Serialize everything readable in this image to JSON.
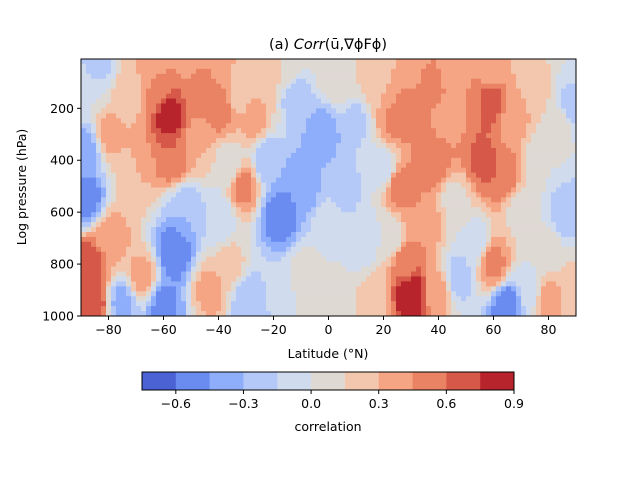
{
  "chart_data": {
    "type": "heatmap",
    "title": "(a) Corr(ū,∇ϕFϕ)",
    "title_plain": "(a) ",
    "title_italic": "Corr",
    "title_rest": "(ū,∇ϕFϕ)",
    "xlabel": "Latitude (°N)",
    "ylabel": "Log pressure (hPa)",
    "xlim": [
      -90,
      90
    ],
    "ylim": [
      1000,
      10
    ],
    "xticks": [
      "−80",
      "−60",
      "−40",
      "−20",
      "0",
      "20",
      "40",
      "60",
      "80"
    ],
    "xtick_values": [
      -80,
      -60,
      -40,
      -20,
      0,
      20,
      40,
      60,
      80
    ],
    "yticks": [
      "200",
      "400",
      "600",
      "800",
      "1000"
    ],
    "ytick_values": [
      200,
      400,
      600,
      800,
      1000
    ],
    "colorbar": {
      "label": "correlation",
      "levels": [
        -0.75,
        -0.6,
        -0.45,
        -0.3,
        -0.15,
        0.0,
        0.15,
        0.3,
        0.45,
        0.6,
        0.75,
        0.9
      ],
      "colors": [
        "#4a62d4",
        "#6a8cf0",
        "#8eaefb",
        "#b4c9f7",
        "#d1dbee",
        "#dfd9d4",
        "#f3c6ae",
        "#f5a584",
        "#ea8363",
        "#d65848",
        "#b8242c"
      ],
      "tick_labels": [
        "−0.6",
        "−0.3",
        "0.0",
        "0.3",
        "0.6",
        "0.9"
      ],
      "tick_values": [
        -0.6,
        -0.3,
        0.0,
        0.3,
        0.6,
        0.9
      ]
    },
    "grid": false,
    "colormap": "coolwarm",
    "field_anchors": [
      {
        "lat": -88,
        "p": 150,
        "r": 0.0
      },
      {
        "lat": -88,
        "p": 350,
        "r": -0.35
      },
      {
        "lat": -88,
        "p": 550,
        "r": -0.55
      },
      {
        "lat": -87,
        "p": 800,
        "r": 0.7
      },
      {
        "lat": -86,
        "p": 950,
        "r": 0.75
      },
      {
        "lat": -80,
        "p": 300,
        "r": 0.35
      },
      {
        "lat": -80,
        "p": 700,
        "r": 0.4
      },
      {
        "lat": -75,
        "p": 950,
        "r": -0.35
      },
      {
        "lat": -72,
        "p": 150,
        "r": 0.25
      },
      {
        "lat": -70,
        "p": 450,
        "r": 0.3
      },
      {
        "lat": -68,
        "p": 850,
        "r": 0.35
      },
      {
        "lat": -62,
        "p": 130,
        "r": 0.5
      },
      {
        "lat": -58,
        "p": 220,
        "r": 0.85
      },
      {
        "lat": -57,
        "p": 380,
        "r": 0.6
      },
      {
        "lat": -56,
        "p": 750,
        "r": -0.6
      },
      {
        "lat": -60,
        "p": 960,
        "r": -0.5
      },
      {
        "lat": -52,
        "p": 600,
        "r": -0.3
      },
      {
        "lat": -48,
        "p": 120,
        "r": 0.55
      },
      {
        "lat": -46,
        "p": 330,
        "r": 0.3
      },
      {
        "lat": -43,
        "p": 900,
        "r": 0.35
      },
      {
        "lat": -40,
        "p": 200,
        "r": 0.6
      },
      {
        "lat": -40,
        "p": 620,
        "r": -0.15
      },
      {
        "lat": -36,
        "p": 420,
        "r": 0.0
      },
      {
        "lat": -36,
        "p": 800,
        "r": 0.2
      },
      {
        "lat": -33,
        "p": 150,
        "r": 0.25
      },
      {
        "lat": -31,
        "p": 500,
        "r": 0.5
      },
      {
        "lat": -29,
        "p": 950,
        "r": -0.3
      },
      {
        "lat": -27,
        "p": 250,
        "r": 0.35
      },
      {
        "lat": -23,
        "p": 80,
        "r": 0.3
      },
      {
        "lat": -22,
        "p": 400,
        "r": -0.3
      },
      {
        "lat": -18,
        "p": 620,
        "r": -0.55
      },
      {
        "lat": -18,
        "p": 900,
        "r": -0.1
      },
      {
        "lat": -12,
        "p": 150,
        "r": -0.25
      },
      {
        "lat": -10,
        "p": 500,
        "r": -0.45
      },
      {
        "lat": -8,
        "p": 850,
        "r": 0.15
      },
      {
        "lat": -2,
        "p": 300,
        "r": -0.4
      },
      {
        "lat": 0,
        "p": 650,
        "r": -0.1
      },
      {
        "lat": 2,
        "p": 920,
        "r": 0.05
      },
      {
        "lat": 5,
        "p": 90,
        "r": 0.1
      },
      {
        "lat": 6,
        "p": 500,
        "r": -0.2
      },
      {
        "lat": 10,
        "p": 250,
        "r": -0.2
      },
      {
        "lat": 12,
        "p": 700,
        "r": -0.15
      },
      {
        "lat": 16,
        "p": 950,
        "r": 0.2
      },
      {
        "lat": 18,
        "p": 130,
        "r": 0.3
      },
      {
        "lat": 20,
        "p": 430,
        "r": -0.1
      },
      {
        "lat": 22,
        "p": 700,
        "r": 0.0
      },
      {
        "lat": 24,
        "p": 250,
        "r": 0.5
      },
      {
        "lat": 26,
        "p": 500,
        "r": 0.55
      },
      {
        "lat": 28,
        "p": 800,
        "r": 0.55
      },
      {
        "lat": 30,
        "p": 910,
        "r": 0.9
      },
      {
        "lat": 31,
        "p": 200,
        "r": 0.55
      },
      {
        "lat": 34,
        "p": 650,
        "r": 0.45
      },
      {
        "lat": 37,
        "p": 100,
        "r": 0.5
      },
      {
        "lat": 38,
        "p": 400,
        "r": 0.6
      },
      {
        "lat": 40,
        "p": 900,
        "r": 0.35
      },
      {
        "lat": 43,
        "p": 250,
        "r": 0.4
      },
      {
        "lat": 46,
        "p": 550,
        "r": 0.1
      },
      {
        "lat": 47,
        "p": 850,
        "r": -0.25
      },
      {
        "lat": 50,
        "p": 150,
        "r": 0.45
      },
      {
        "lat": 53,
        "p": 720,
        "r": -0.1
      },
      {
        "lat": 56,
        "p": 400,
        "r": 0.65
      },
      {
        "lat": 59,
        "p": 180,
        "r": 0.7
      },
      {
        "lat": 60,
        "p": 800,
        "r": 0.5
      },
      {
        "lat": 63,
        "p": 450,
        "r": 0.6
      },
      {
        "lat": 65,
        "p": 960,
        "r": -0.55
      },
      {
        "lat": 67,
        "p": 250,
        "r": 0.35
      },
      {
        "lat": 70,
        "p": 600,
        "r": 0.1
      },
      {
        "lat": 73,
        "p": 900,
        "r": -0.1
      },
      {
        "lat": 75,
        "p": 120,
        "r": 0.3
      },
      {
        "lat": 78,
        "p": 400,
        "r": 0.0
      },
      {
        "lat": 80,
        "p": 750,
        "r": 0.05
      },
      {
        "lat": 80,
        "p": 940,
        "r": 0.45
      },
      {
        "lat": 84,
        "p": 250,
        "r": 0.1
      },
      {
        "lat": 86,
        "p": 600,
        "r": -0.25
      },
      {
        "lat": 88,
        "p": 180,
        "r": -0.3
      },
      {
        "lat": 88,
        "p": 900,
        "r": 0.2
      },
      {
        "lat": -84,
        "p": 30,
        "r": -0.2
      },
      {
        "lat": -65,
        "p": 30,
        "r": 0.3
      },
      {
        "lat": -50,
        "p": 30,
        "r": 0.4
      },
      {
        "lat": -35,
        "p": 40,
        "r": 0.3
      },
      {
        "lat": -15,
        "p": 40,
        "r": 0.15
      },
      {
        "lat": 0,
        "p": 40,
        "r": 0.05
      },
      {
        "lat": 15,
        "p": 40,
        "r": 0.2
      },
      {
        "lat": 30,
        "p": 30,
        "r": 0.3
      },
      {
        "lat": 45,
        "p": 30,
        "r": 0.35
      },
      {
        "lat": 60,
        "p": 40,
        "r": 0.3
      },
      {
        "lat": 75,
        "p": 30,
        "r": 0.15
      },
      {
        "lat": 88,
        "p": 40,
        "r": 0.0
      }
    ]
  }
}
